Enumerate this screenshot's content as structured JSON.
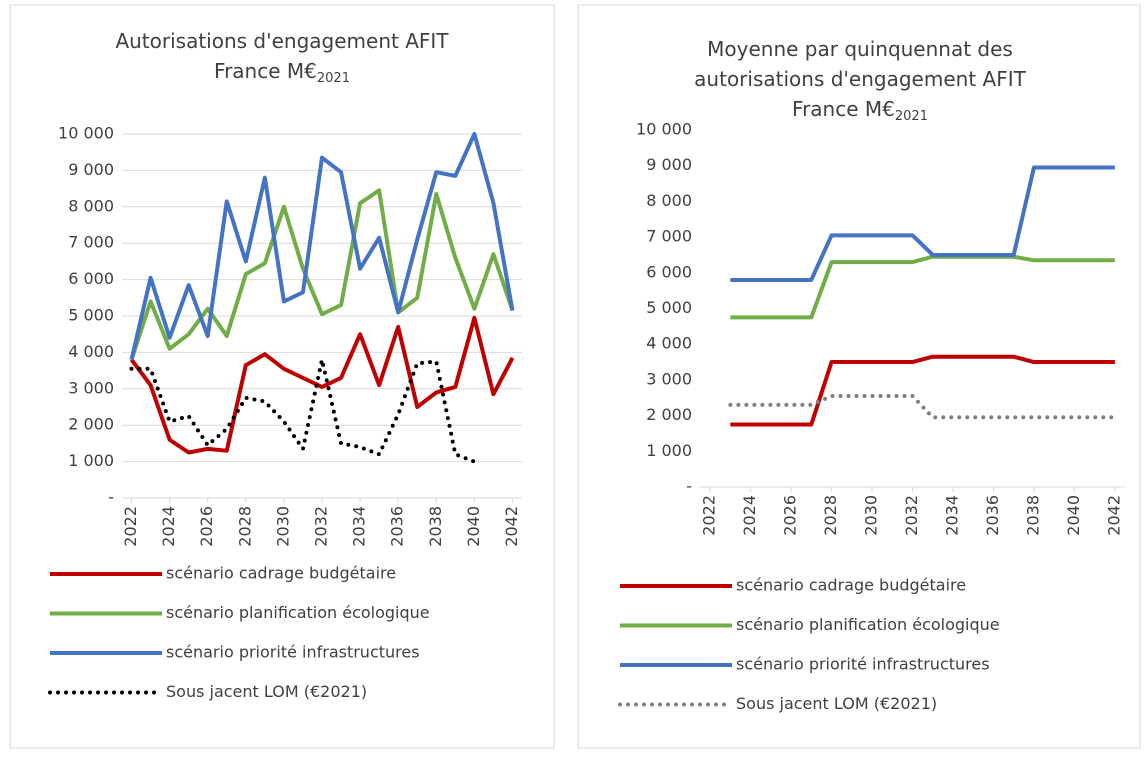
{
  "chart_data": [
    {
      "type": "line",
      "title": [
        "Autorisations d'engagement AFIT",
        "France M€"
      ],
      "title_subscript": "2021",
      "x": [
        2022,
        2023,
        2024,
        2025,
        2026,
        2027,
        2028,
        2029,
        2030,
        2031,
        2032,
        2033,
        2034,
        2035,
        2036,
        2037,
        2038,
        2039,
        2040,
        2041,
        2042
      ],
      "xlim": [
        2021.5,
        2042.5
      ],
      "xticks": [
        2022,
        2024,
        2026,
        2028,
        2030,
        2032,
        2034,
        2036,
        2038,
        2040,
        2042
      ],
      "ylim": [
        0,
        10000
      ],
      "yticks": [
        {
          "value": 0,
          "label": "-"
        },
        {
          "value": 1000,
          "label": "1 000"
        },
        {
          "value": 2000,
          "label": "2 000"
        },
        {
          "value": 3000,
          "label": "3 000"
        },
        {
          "value": 4000,
          "label": "4 000"
        },
        {
          "value": 5000,
          "label": "5 000"
        },
        {
          "value": 6000,
          "label": "6 000"
        },
        {
          "value": 7000,
          "label": "7 000"
        },
        {
          "value": 8000,
          "label": "8 000"
        },
        {
          "value": 9000,
          "label": "9 000"
        },
        {
          "value": 10000,
          "label": "10 000"
        }
      ],
      "grid": true,
      "series": [
        {
          "name": "scénario cadrage budgétaire",
          "color": "#c00000",
          "style": "solid",
          "values": [
            3800,
            3100,
            1600,
            1250,
            1350,
            1300,
            3650,
            3950,
            3550,
            3300,
            3050,
            3300,
            4500,
            3100,
            4700,
            2500,
            2900,
            3050,
            4950,
            2850,
            3850
          ]
        },
        {
          "name": "scénario planification écologique",
          "color": "#70ad47",
          "style": "solid",
          "values": [
            3800,
            5400,
            4100,
            4500,
            5200,
            4450,
            6150,
            6450,
            8000,
            6300,
            5050,
            5300,
            8100,
            8450,
            5100,
            5500,
            8350,
            6600,
            5200,
            6700,
            5150
          ]
        },
        {
          "name": "scénario priorité infrastructures",
          "color": "#4472c4",
          "style": "solid",
          "values": [
            3800,
            6050,
            4400,
            5850,
            4450,
            8150,
            6500,
            8800,
            5400,
            5650,
            9350,
            8950,
            6300,
            7150,
            5100,
            7100,
            8950,
            8850,
            10000,
            8100,
            5150
          ]
        },
        {
          "name": "Sous jacent LOM (€2021)",
          "color": "#000000",
          "style": "dotted",
          "values": [
            3550,
            3550,
            2100,
            2250,
            1450,
            1900,
            2750,
            2650,
            2100,
            1350,
            3800,
            1500,
            1400,
            1200,
            2300,
            3700,
            3750,
            1200,
            1000,
            null,
            null
          ]
        }
      ]
    },
    {
      "type": "line",
      "title": [
        "Moyenne par quinquennat des",
        "autorisations d'engagement AFIT",
        "France M€"
      ],
      "title_subscript": "2021",
      "x": [
        2023,
        2024,
        2025,
        2026,
        2027,
        2028,
        2029,
        2030,
        2031,
        2032,
        2033,
        2034,
        2035,
        2036,
        2037,
        2038,
        2039,
        2040,
        2041,
        2042
      ],
      "xlim": [
        2021.5,
        2042.5
      ],
      "xticks": [
        2022,
        2024,
        2026,
        2028,
        2030,
        2032,
        2034,
        2036,
        2038,
        2040,
        2042
      ],
      "ylim": [
        0,
        10000
      ],
      "yticks": [
        {
          "value": 0,
          "label": "-"
        },
        {
          "value": 1000,
          "label": "1 000"
        },
        {
          "value": 2000,
          "label": "2 000"
        },
        {
          "value": 3000,
          "label": "3 000"
        },
        {
          "value": 4000,
          "label": "4 000"
        },
        {
          "value": 5000,
          "label": "5 000"
        },
        {
          "value": 6000,
          "label": "6 000"
        },
        {
          "value": 7000,
          "label": "7 000"
        },
        {
          "value": 8000,
          "label": "8 000"
        },
        {
          "value": 9000,
          "label": "9 000"
        },
        {
          "value": 10000,
          "label": "10 000"
        }
      ],
      "grid": false,
      "series": [
        {
          "name": "scénario cadrage budgétaire",
          "color": "#c00000",
          "style": "solid",
          "values": [
            1750,
            1750,
            1750,
            1750,
            1750,
            3500,
            3500,
            3500,
            3500,
            3500,
            3650,
            3650,
            3650,
            3650,
            3650,
            3500,
            3500,
            3500,
            3500,
            3500
          ]
        },
        {
          "name": "scénario planification écologique",
          "color": "#70ad47",
          "style": "solid",
          "values": [
            4750,
            4750,
            4750,
            4750,
            4750,
            6300,
            6300,
            6300,
            6300,
            6300,
            6450,
            6450,
            6450,
            6450,
            6450,
            6350,
            6350,
            6350,
            6350,
            6350
          ]
        },
        {
          "name": "scénario priorité infrastructures",
          "color": "#4472c4",
          "style": "solid",
          "values": [
            5800,
            5800,
            5800,
            5800,
            5800,
            7050,
            7050,
            7050,
            7050,
            7050,
            6500,
            6500,
            6500,
            6500,
            6500,
            8950,
            8950,
            8950,
            8950,
            8950
          ]
        },
        {
          "name": "Sous jacent LOM (€2021)",
          "color": "#7f7f7f",
          "style": "dotted",
          "values": [
            2300,
            2300,
            2300,
            2300,
            2300,
            2550,
            2550,
            2550,
            2550,
            2550,
            1950,
            1950,
            1950,
            1950,
            1950,
            1950,
            1950,
            1950,
            1950,
            1950
          ]
        }
      ]
    }
  ]
}
